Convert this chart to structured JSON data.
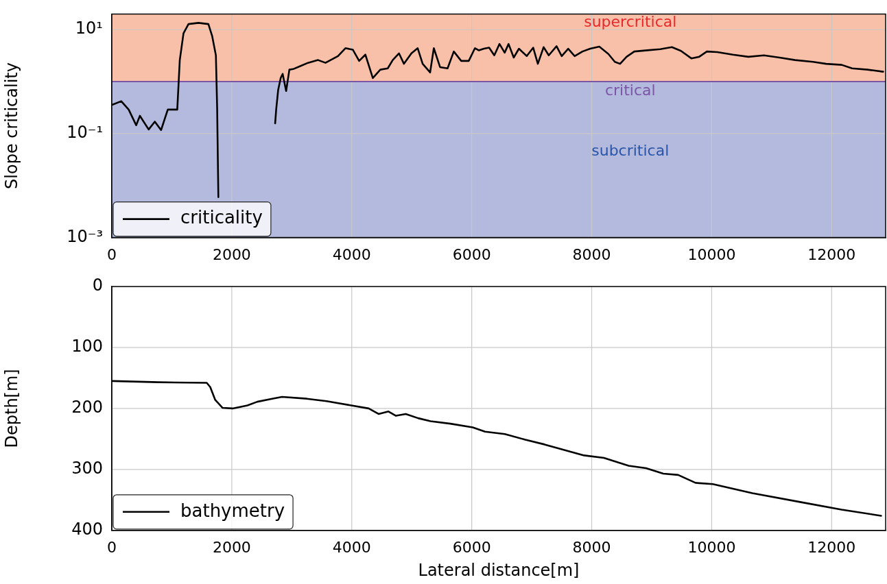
{
  "chart_data": [
    {
      "type": "line",
      "ylabel": "Slope criticality",
      "log": "y",
      "grid": true,
      "legend": "bottom left",
      "marker": "none",
      "line_style": "solid",
      "xlim": [
        0,
        12900
      ],
      "xticks": [
        0,
        2000,
        4000,
        6000,
        8000,
        10000,
        12000
      ],
      "ylim": [
        0.001,
        20
      ],
      "yticks": [
        {
          "value": 10,
          "label": "10¹"
        },
        {
          "value": 0.1,
          "label": "10⁻¹"
        },
        {
          "value": 0.001,
          "label": "10⁻³"
        }
      ],
      "bands": [
        {
          "axis": "y",
          "from": 1,
          "to": 20,
          "label": "supercritical",
          "color": "#f9c0a9"
        },
        {
          "axis": "y",
          "from": 0.001,
          "to": 1,
          "label": "subcritical",
          "color": "#b3badd"
        }
      ],
      "ref_lines": [
        {
          "axis": "y",
          "value": 1,
          "label": "critical",
          "color": "#7b56a6"
        }
      ],
      "series": [
        {
          "name": "criticality",
          "color": "#000000",
          "x": [
            11,
            157,
            281,
            406,
            468,
            614,
            717,
            821,
            933,
            1091,
            1133,
            1195,
            1278,
            1444,
            1610,
            1672,
            1735,
            1756,
            1776,
            2250,
            2723,
            2740,
            2773,
            2815,
            2848,
            2906,
            2960,
            3022,
            3147,
            3271,
            3438,
            3562,
            3770,
            3894,
            4019,
            4123,
            4227,
            4351,
            4476,
            4600,
            4683,
            4787,
            4870,
            4995,
            5099,
            5182,
            5306,
            5368,
            5472,
            5597,
            5701,
            5825,
            5950,
            6054,
            6117,
            6203,
            6290,
            6376,
            6463,
            6549,
            6614,
            6700,
            6787,
            6917,
            7025,
            7102,
            7198,
            7284,
            7414,
            7500,
            7608,
            7716,
            7846,
            7975,
            8127,
            8278,
            8386,
            8473,
            8581,
            8710,
            8926,
            9142,
            9337,
            9488,
            9661,
            9791,
            9920,
            10093,
            10353,
            10612,
            10871,
            11131,
            11390,
            11692,
            11908,
            12168,
            12341,
            12600,
            12859
          ],
          "values": [
            0.36,
            0.42,
            0.29,
            0.145,
            0.22,
            0.12,
            0.17,
            0.117,
            0.29,
            0.29,
            2.6,
            8.5,
            12.8,
            13.5,
            12.8,
            7.6,
            3.2,
            0.31,
            0.006,
            null,
            0.158,
            0.29,
            0.69,
            1.17,
            1.41,
            0.66,
            1.7,
            1.74,
            2.0,
            2.3,
            2.6,
            2.3,
            3.1,
            4.4,
            4.1,
            2.5,
            3.3,
            1.17,
            1.7,
            1.8,
            2.6,
            3.5,
            2.2,
            3.5,
            4.4,
            2.2,
            1.5,
            4.4,
            1.9,
            1.8,
            3.8,
            2.5,
            2.5,
            4.4,
            4.0,
            4.3,
            4.5,
            3.2,
            5.3,
            3.6,
            5.3,
            2.9,
            4.3,
            3.1,
            4.5,
            2.2,
            4.6,
            3.2,
            4.8,
            3.1,
            4.3,
            3.1,
            3.8,
            4.3,
            4.7,
            3.4,
            2.4,
            2.2,
            3.0,
            3.8,
            4.0,
            4.2,
            4.6,
            3.9,
            2.8,
            3.0,
            3.8,
            3.7,
            3.3,
            3.0,
            3.2,
            2.9,
            2.6,
            2.4,
            2.2,
            2.1,
            1.8,
            1.7,
            1.55
          ]
        }
      ]
    },
    {
      "type": "line",
      "xlabel": "Lateral distance[m]",
      "ylabel": "Depth[m]",
      "grid": true,
      "legend": "bottom left",
      "marker": "none",
      "line_style": "solid",
      "xlim": [
        0,
        12900
      ],
      "xticks": [
        0,
        2000,
        4000,
        6000,
        8000,
        10000,
        12000
      ],
      "ylim": [
        400,
        0
      ],
      "yticks": [
        0,
        100,
        200,
        300,
        400
      ],
      "series": [
        {
          "name": "bathymetry",
          "color": "#000000",
          "x": [
            15,
            775,
            1583,
            1641,
            1724,
            1847,
            2012,
            2260,
            2425,
            2673,
            2838,
            3250,
            3581,
            3993,
            4282,
            4447,
            4612,
            4736,
            4901,
            5108,
            5314,
            5644,
            6016,
            6222,
            6552,
            6883,
            7213,
            7543,
            7873,
            8203,
            8616,
            8905,
            9194,
            9441,
            9730,
            10019,
            10679,
            11505,
            12165,
            12825
          ],
          "values": [
            155,
            157,
            158,
            165,
            186,
            199,
            200,
            195,
            189,
            184,
            181,
            184,
            188,
            195,
            200,
            209,
            205,
            212,
            209,
            216,
            221,
            225,
            231,
            238,
            242,
            251,
            259,
            268,
            277,
            281,
            294,
            298,
            307,
            309,
            322,
            324,
            339,
            354,
            366,
            376
          ]
        }
      ]
    }
  ]
}
